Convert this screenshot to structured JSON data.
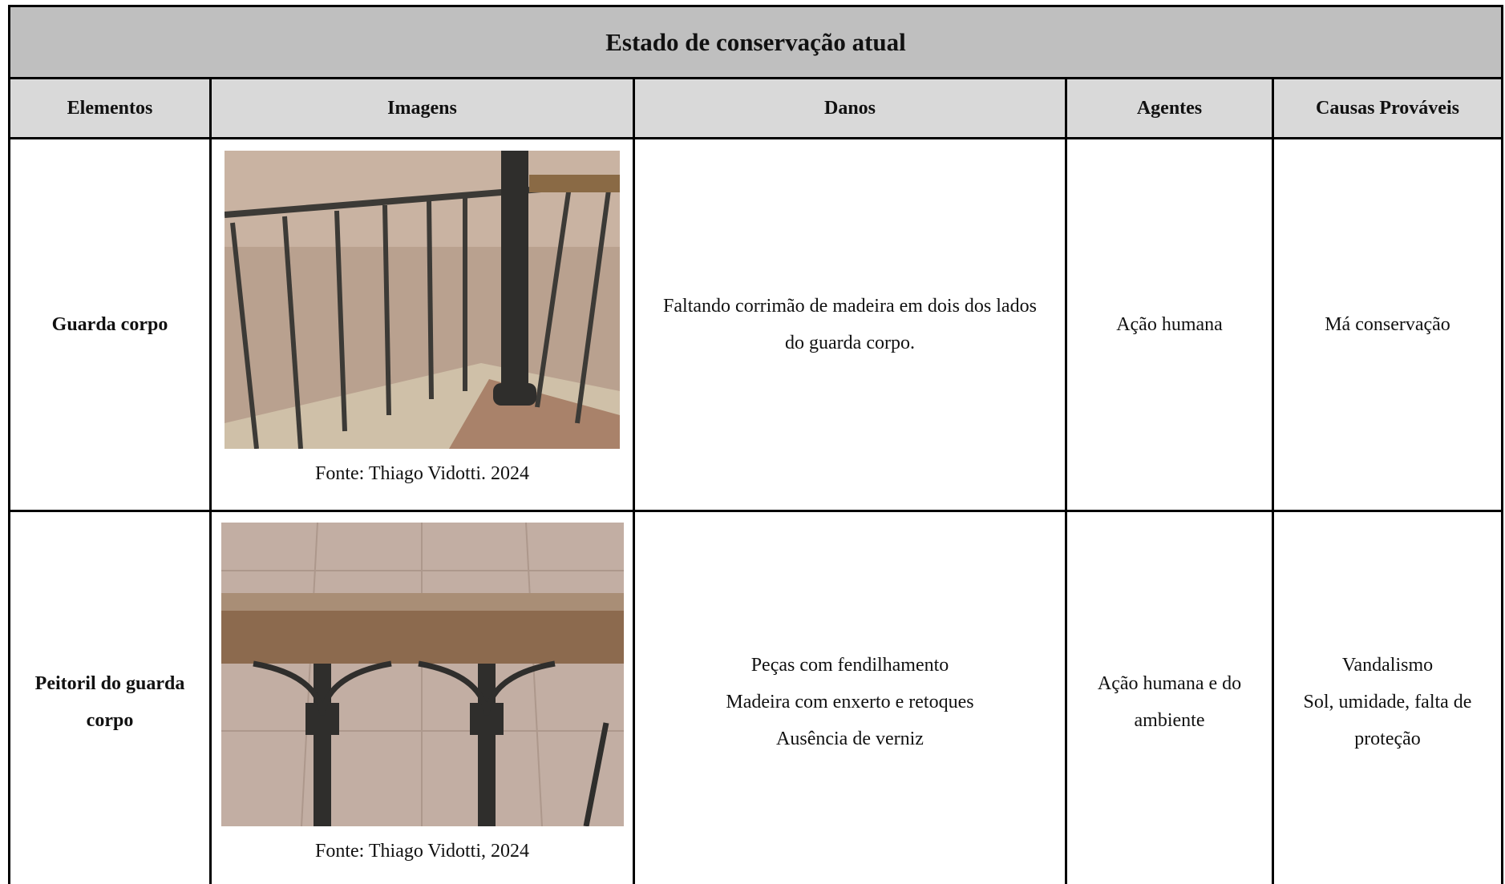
{
  "table": {
    "title": "Estado de conservação atual",
    "headers": [
      "Elementos",
      "Imagens",
      "Danos",
      "Agentes",
      "Causas Prováveis"
    ],
    "rows": [
      {
        "element": "Guarda corpo",
        "image_caption": "Fonte: Thiago Vidotti. 2024",
        "damage": [
          "Faltando corrimão de madeira em dois dos lados do guarda corpo."
        ],
        "agents": [
          "Ação humana"
        ],
        "causes": [
          "Má conservação"
        ]
      },
      {
        "element": "Peitoril do guarda corpo",
        "image_caption": "Fonte: Thiago Vidotti, 2024",
        "damage": [
          "Peças com fendilhamento",
          "Madeira com enxerto e retoques",
          "Ausência de verniz"
        ],
        "agents": [
          "Ação humana e do ambiente"
        ],
        "causes": [
          "Vandalismo",
          "Sol, umidade, falta de proteção"
        ]
      }
    ]
  }
}
